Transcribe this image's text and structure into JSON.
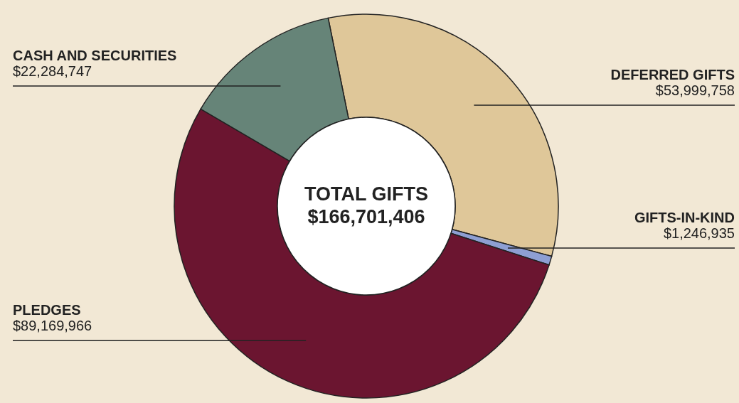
{
  "chart_data": {
    "type": "donut",
    "categories": [
      "DEFERRED GIFTS",
      "GIFTS-IN-KIND",
      "PLEDGES",
      "CASH AND SECURITIES"
    ],
    "values": [
      53999758,
      1246935,
      89169966,
      22284747
    ],
    "colors": [
      "#dfc799",
      "#8e9fd3",
      "#6b1530",
      "#668478"
    ],
    "value_labels": [
      "$53,999,758",
      "$1,246,935",
      "$89,169,966",
      "$22,284,747"
    ],
    "annotations": [
      "TOTAL GIFTS",
      "$166,701,406"
    ]
  }
}
